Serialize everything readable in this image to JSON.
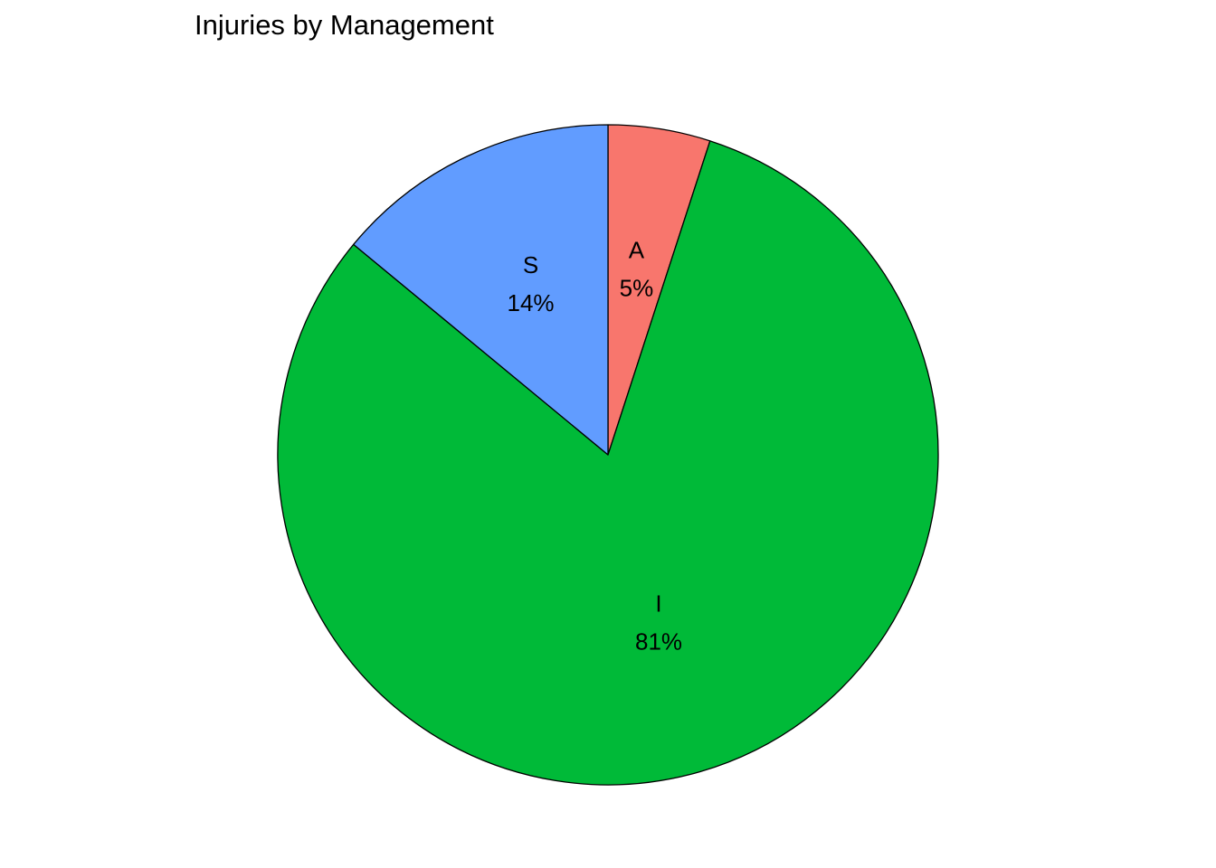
{
  "chart_data": {
    "type": "pie",
    "title": "Injuries by Management",
    "start": "12 o'clock",
    "direction": "clockwise",
    "slices": [
      {
        "name": "A",
        "value": 5,
        "label": "5%",
        "color": "#F8766D"
      },
      {
        "name": "I",
        "value": 81,
        "label": "81%",
        "color": "#00BA38"
      },
      {
        "name": "S",
        "value": 14,
        "label": "14%",
        "color": "#619CFF"
      }
    ],
    "legend": "none"
  }
}
